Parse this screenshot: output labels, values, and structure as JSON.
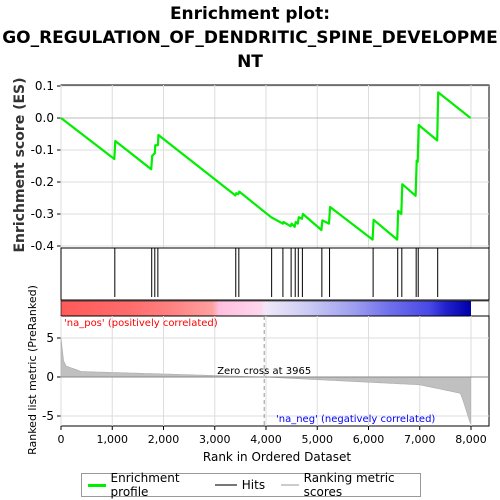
{
  "title_line1": "Enrichment plot:",
  "title_line2": "GO_REGULATION_OF_DENDRITIC_SPINE_DEVELOPME",
  "title_line3": "NT",
  "chart_data": {
    "type": "line",
    "es_ylabel": "Enrichment score (ES)",
    "es_ylim": [
      -0.4,
      0.1
    ],
    "es_yticks": [
      "0.1",
      "0.0",
      "-0.1",
      "-0.2",
      "-0.3",
      "-0.4"
    ],
    "es_ytick_values": [
      0.1,
      0.0,
      -0.1,
      -0.2,
      -0.3,
      -0.4
    ],
    "xlim": [
      0,
      8000
    ],
    "xticks": [
      "0",
      "1,000",
      "2,000",
      "3,000",
      "4,000",
      "5,000",
      "6,000",
      "7,000",
      "8,000"
    ],
    "xtick_values": [
      0,
      1000,
      2000,
      3000,
      4000,
      5000,
      6000,
      7000,
      8000
    ],
    "xlabel": "Rank in Ordered Dataset",
    "series": [
      {
        "name": "Enrichment profile",
        "color": "#00ee00",
        "points": [
          [
            0,
            0.0
          ],
          [
            1040,
            -0.128
          ],
          [
            1060,
            -0.072
          ],
          [
            1760,
            -0.16
          ],
          [
            1780,
            -0.118
          ],
          [
            1830,
            -0.11
          ],
          [
            1840,
            -0.085
          ],
          [
            1890,
            -0.085
          ],
          [
            1900,
            -0.053
          ],
          [
            3400,
            -0.242
          ],
          [
            3420,
            -0.235
          ],
          [
            3460,
            -0.238
          ],
          [
            3480,
            -0.23
          ],
          [
            4100,
            -0.31
          ],
          [
            4330,
            -0.33
          ],
          [
            4340,
            -0.325
          ],
          [
            4480,
            -0.338
          ],
          [
            4500,
            -0.33
          ],
          [
            4560,
            -0.34
          ],
          [
            4580,
            -0.325
          ],
          [
            4620,
            -0.33
          ],
          [
            4640,
            -0.31
          ],
          [
            4700,
            -0.315
          ],
          [
            4720,
            -0.3
          ],
          [
            5080,
            -0.35
          ],
          [
            5100,
            -0.32
          ],
          [
            5230,
            -0.33
          ],
          [
            5250,
            -0.278
          ],
          [
            6080,
            -0.38
          ],
          [
            6100,
            -0.318
          ],
          [
            6560,
            -0.38
          ],
          [
            6580,
            -0.29
          ],
          [
            6640,
            -0.3
          ],
          [
            6660,
            -0.207
          ],
          [
            6920,
            -0.243
          ],
          [
            6940,
            -0.133
          ],
          [
            6960,
            -0.137
          ],
          [
            6980,
            -0.022
          ],
          [
            7340,
            -0.07
          ],
          [
            7360,
            0.08
          ],
          [
            7990,
            0.0
          ]
        ]
      }
    ],
    "hits": [
      1050,
      1770,
      1830,
      1890,
      3410,
      3470,
      4110,
      4330,
      4490,
      4570,
      4630,
      4710,
      5090,
      5240,
      6090,
      6570,
      6650,
      6930,
      6970,
      7350
    ],
    "ranking_ylabel": "Ranked list metric (PreRanked)",
    "ranking_ylim": [
      -6,
      6
    ],
    "ranking_yticks": [
      "5",
      "0",
      "-5"
    ],
    "ranking_ytick_values": [
      5,
      0,
      -5
    ],
    "zero_cross_label": "Zero cross at 3965",
    "zero_cross": 3965,
    "pos_label": "'na_pos' (positively correlated)",
    "neg_label": "'na_neg' (negatively correlated)",
    "colors": {
      "profile": "#00ee00",
      "hits": "#000000",
      "ranking_fill": "#c0c0c0",
      "pos_label": "#ff0000",
      "neg_label": "#0000ff",
      "zero_line": "#999999"
    }
  },
  "legend": {
    "profile_label": "Enrichment profile",
    "hits_label": "Hits",
    "ranking_label": "Ranking metric scores",
    "hits_color": "#777777",
    "ranking_color": "#cccccc"
  }
}
